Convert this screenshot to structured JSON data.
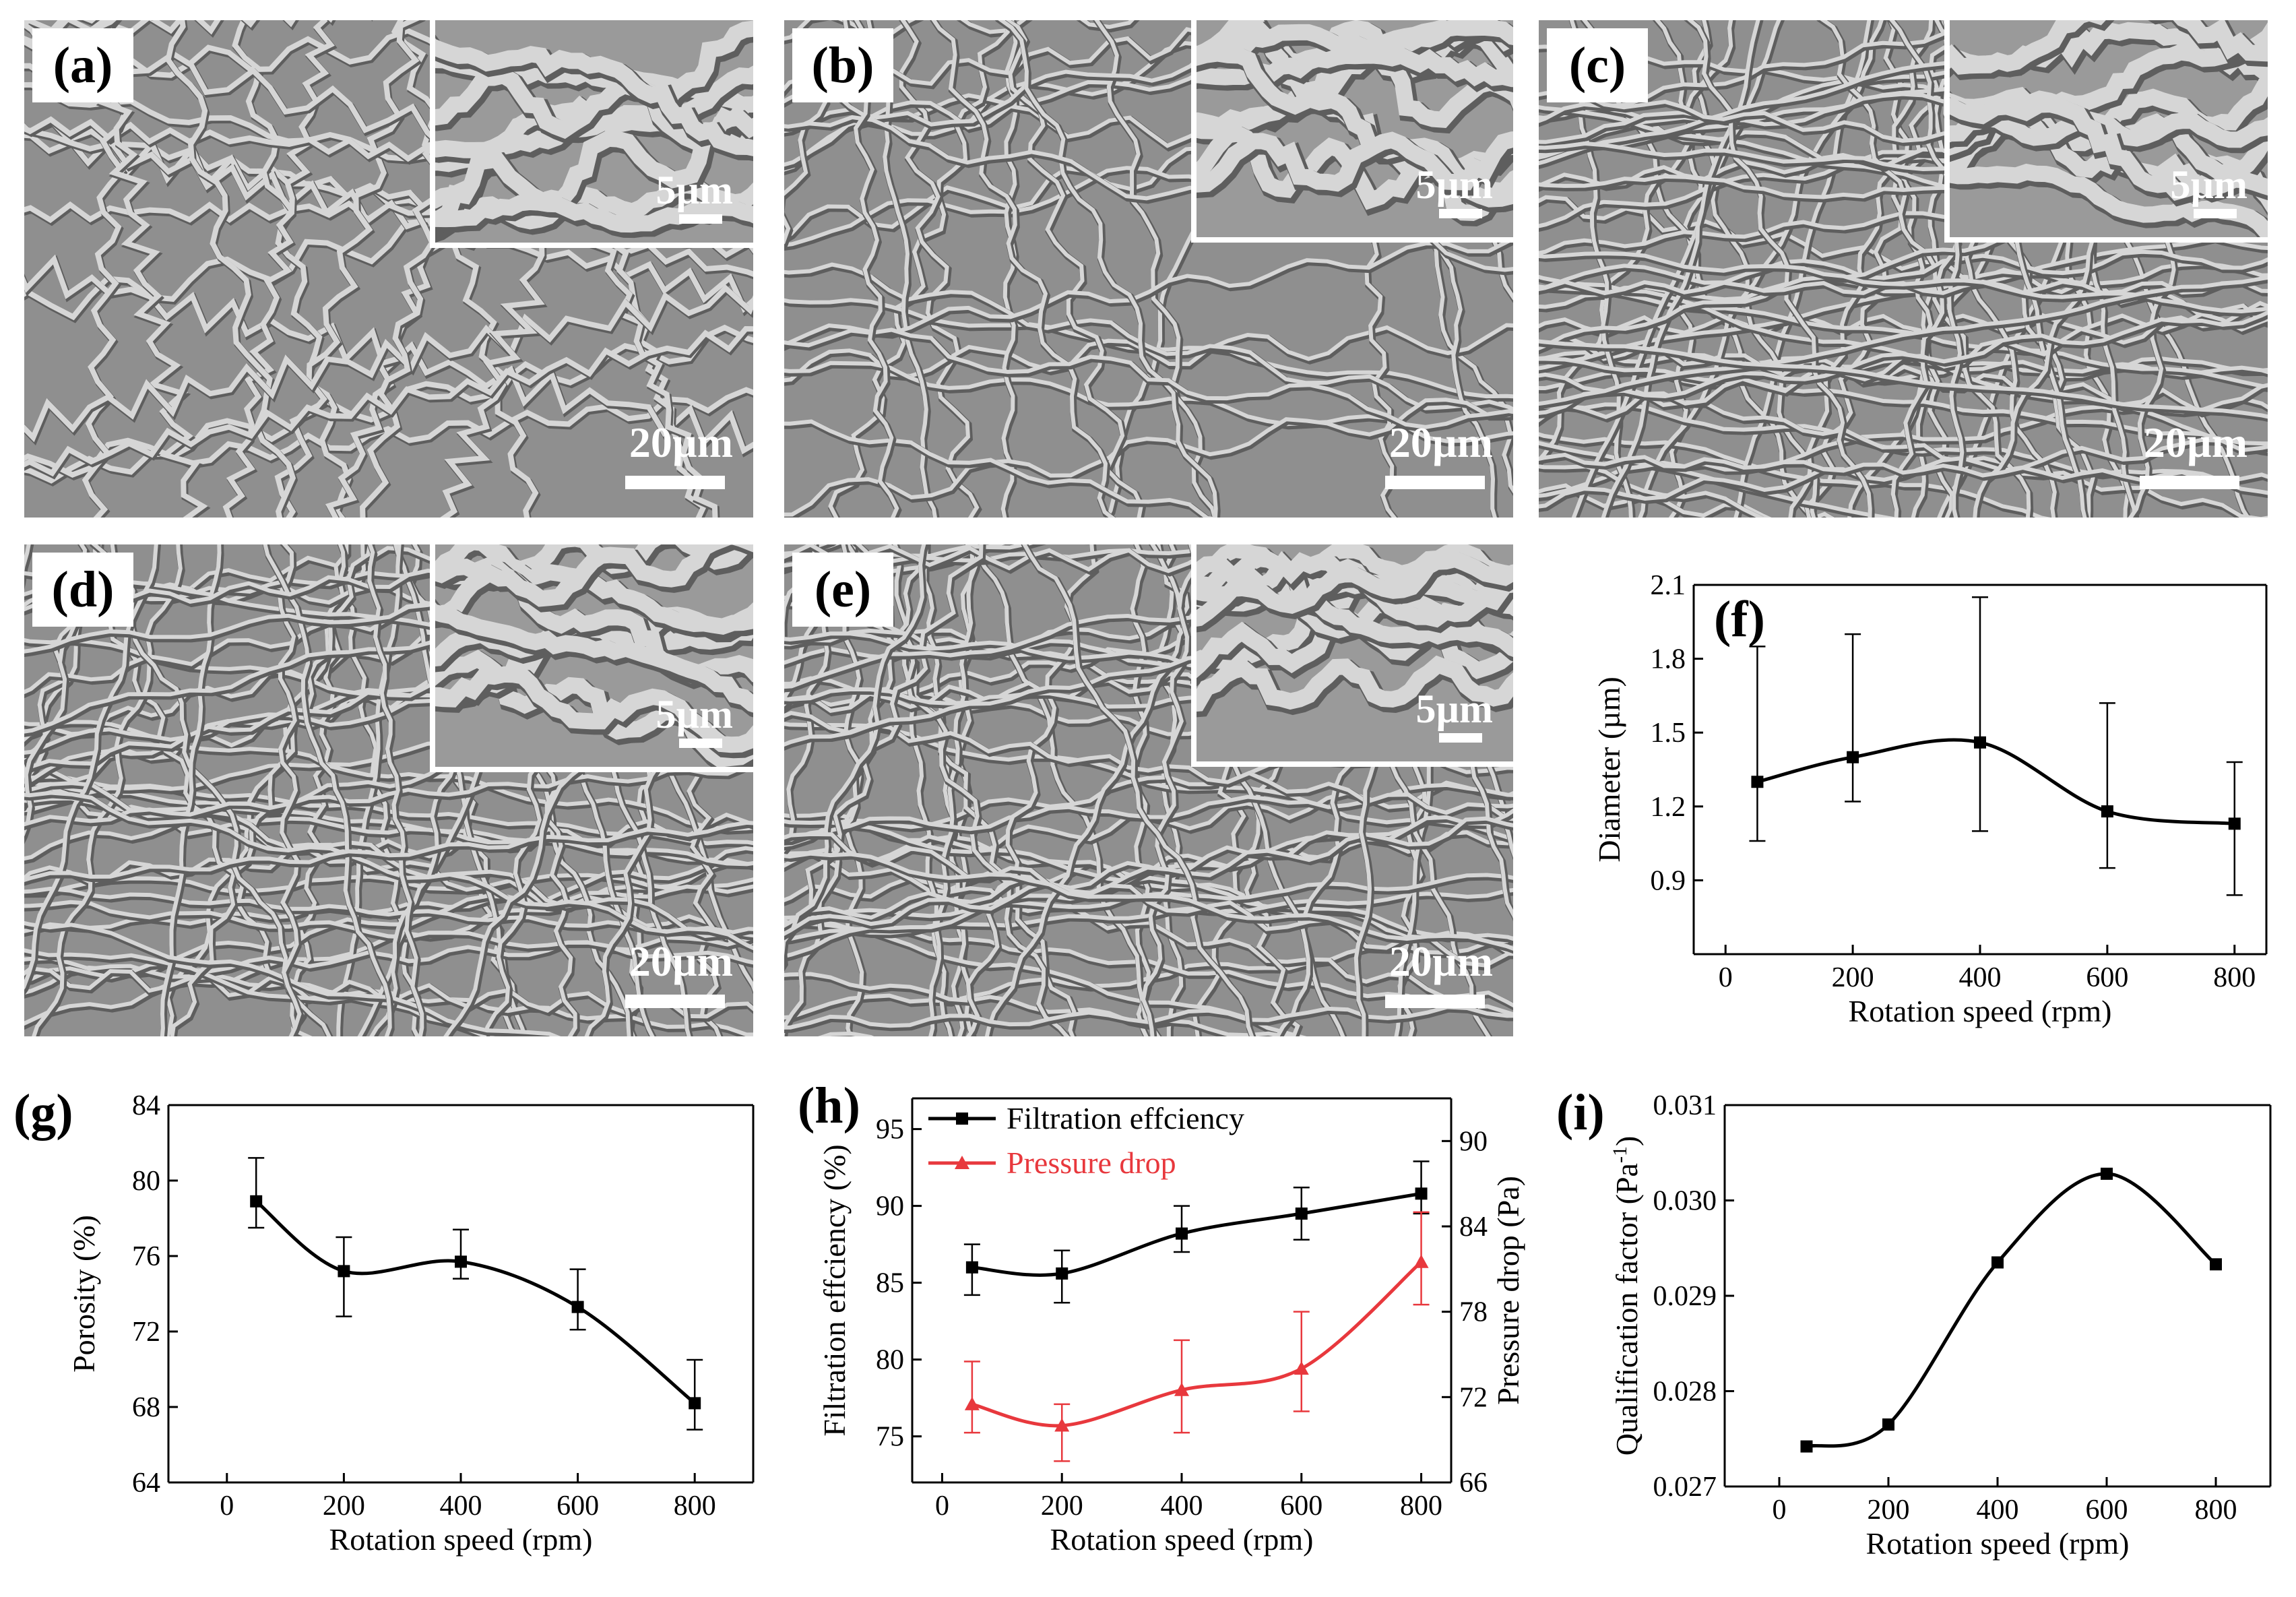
{
  "sem_panels": [
    {
      "label": "(a)",
      "inset_scale": "5µm",
      "main_scale": "20µm",
      "style": "coiled"
    },
    {
      "label": "(b)",
      "inset_scale": "5µm",
      "main_scale": "20µm",
      "style": "loops"
    },
    {
      "label": "(c)",
      "inset_scale": "5µm",
      "main_scale": "20µm",
      "style": "dense"
    },
    {
      "label": "(d)",
      "inset_scale": "5µm",
      "main_scale": "20µm",
      "style": "dense"
    },
    {
      "label": "(e)",
      "inset_scale": "5µm",
      "main_scale": "20µm",
      "style": "dense"
    }
  ],
  "colors": {
    "black": "#000000",
    "red": "#e8383d",
    "sem_bg": "#8f8f8f",
    "fiber": "#d6d6d6"
  },
  "chart_data": [
    {
      "id": "f",
      "label": "(f)",
      "type": "line",
      "x": [
        50,
        200,
        400,
        600,
        800
      ],
      "series": [
        {
          "values": [
            1.3,
            1.4,
            1.46,
            1.18,
            1.13
          ],
          "err_high": [
            1.85,
            1.9,
            2.05,
            1.62,
            1.38
          ],
          "err_low": [
            1.06,
            1.22,
            1.1,
            0.95,
            0.84
          ],
          "marker": "square"
        }
      ],
      "xlabel": "Rotation speed (rpm)",
      "ylabel": "Diameter (µm)",
      "xlim": [
        -50,
        850
      ],
      "ylim": [
        0.6,
        2.1
      ],
      "xticks": [
        0,
        200,
        400,
        600,
        800
      ],
      "yticks": [
        0.9,
        1.2,
        1.5,
        1.8,
        2.1
      ],
      "ytick_labels": [
        "0.9",
        "1.2",
        "1.5",
        "1.8",
        "2.1"
      ]
    },
    {
      "id": "g",
      "label": "(g)",
      "type": "line",
      "x": [
        50,
        200,
        400,
        600,
        800
      ],
      "series": [
        {
          "values": [
            78.9,
            75.2,
            75.7,
            73.3,
            68.2
          ],
          "err_high": [
            81.2,
            77.0,
            77.4,
            75.3,
            70.5
          ],
          "err_low": [
            77.5,
            72.8,
            74.8,
            72.1,
            66.8
          ],
          "marker": "square"
        }
      ],
      "xlabel": "Rotation speed (rpm)",
      "ylabel": "Porosity (%)",
      "xlim": [
        -100,
        900
      ],
      "ylim": [
        64,
        84
      ],
      "xticks": [
        0,
        200,
        400,
        600,
        800
      ],
      "yticks": [
        64,
        68,
        72,
        76,
        80,
        84
      ],
      "ytick_labels": [
        "64",
        "68",
        "72",
        "76",
        "80",
        "84"
      ]
    },
    {
      "id": "h",
      "label": "(h)",
      "type": "line",
      "x": [
        50,
        200,
        400,
        600,
        800
      ],
      "series": [
        {
          "name": "Filtration effciency",
          "axis": "left",
          "marker": "square",
          "values": [
            86.0,
            85.6,
            88.2,
            89.5,
            90.8
          ],
          "err_high": [
            87.5,
            87.1,
            90.0,
            91.2,
            92.9
          ],
          "err_low": [
            84.2,
            83.7,
            87.0,
            87.8,
            89.5
          ]
        },
        {
          "name": "Pressure drop",
          "axis": "right",
          "marker": "triangle",
          "values": [
            71.5,
            70.0,
            72.5,
            74.0,
            81.5
          ],
          "err_high": [
            74.5,
            71.5,
            76.0,
            78.0,
            85.0
          ],
          "err_low": [
            69.5,
            67.5,
            69.5,
            71.0,
            78.5
          ]
        }
      ],
      "xlabel": "Rotation speed (rpm)",
      "ylabel": "Filtration effciency (%)",
      "ylabel_right": "Pressure drop (Pa)",
      "xlim": [
        -50,
        850
      ],
      "ylim": [
        72,
        97
      ],
      "ylim_right": [
        66,
        93
      ],
      "xticks": [
        0,
        200,
        400,
        600,
        800
      ],
      "yticks": [
        75,
        80,
        85,
        90,
        95
      ],
      "ytick_labels": [
        "75",
        "80",
        "85",
        "90",
        "95"
      ],
      "yticks_right": [
        66,
        72,
        78,
        84,
        90
      ],
      "ytick_labels_right": [
        "66",
        "72",
        "78",
        "84",
        "90"
      ],
      "legend": "top-left"
    },
    {
      "id": "i",
      "label": "(i)",
      "type": "line",
      "x": [
        50,
        200,
        400,
        600,
        800
      ],
      "series": [
        {
          "values": [
            0.02742,
            0.02765,
            0.02935,
            0.03028,
            0.02933
          ],
          "marker": "square"
        }
      ],
      "xlabel": "Rotation speed (rpm)",
      "ylabel": "Qualification factor (Pa",
      "ylabel_sup": "-1",
      "ylabel_end": ")",
      "xlim": [
        -100,
        900
      ],
      "ylim": [
        0.027,
        0.031
      ],
      "xticks": [
        0,
        200,
        400,
        600,
        800
      ],
      "yticks": [
        0.027,
        0.028,
        0.029,
        0.03,
        0.031
      ],
      "ytick_labels": [
        "0.027",
        "0.028",
        "0.029",
        "0.030",
        "0.031"
      ]
    }
  ]
}
